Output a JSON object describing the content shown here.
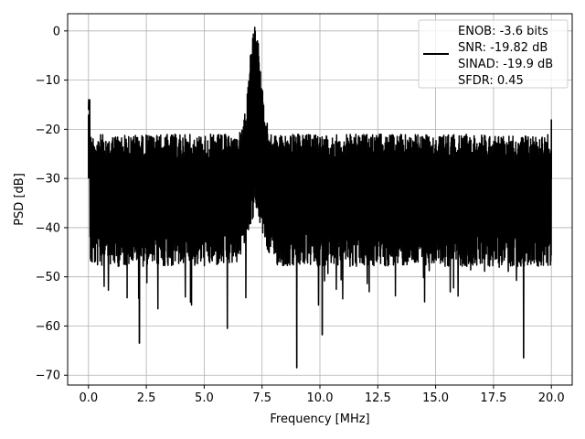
{
  "chart_data": {
    "type": "line",
    "xlabel": "Frequency [MHz]",
    "ylabel": "PSD [dB]",
    "xlim": [
      -0.9,
      20.9
    ],
    "ylim": [
      -72,
      3.5
    ],
    "xticks": [
      0.0,
      2.5,
      5.0,
      7.5,
      10.0,
      12.5,
      15.0,
      17.5,
      20.0
    ],
    "xtick_labels": [
      "0.0",
      "2.5",
      "5.0",
      "7.5",
      "10.0",
      "12.5",
      "15.0",
      "17.5",
      "20.0"
    ],
    "yticks": [
      0,
      -10,
      -20,
      -30,
      -40,
      -50,
      -60,
      -70
    ],
    "ytick_labels": [
      "0",
      "−10",
      "−20",
      "−30",
      "−40",
      "−50",
      "−60",
      "−70"
    ],
    "grid": true,
    "legend_position": "top-right",
    "legend": [
      "ENOB: -3.6 bits",
      "SNR: -19.82 dB",
      "SINAD: -19.9 dB",
      "SFDR: 0.45"
    ],
    "line_color": "#000000",
    "series": [
      {
        "x": [
          0.0,
          0.05,
          2.2,
          3.0,
          6.0,
          6.6,
          7.0,
          7.1,
          7.2,
          7.3,
          7.5,
          8.0,
          9.0,
          10.1,
          13.0,
          17.0,
          18.8,
          20.0
        ],
        "y": [
          -17,
          -14,
          -63.5,
          -56.5,
          -60.5,
          -23,
          -5,
          -1.5,
          0,
          -2,
          -12,
          -24,
          -68.5,
          -61.8,
          -26,
          -22,
          -66.5,
          -18
        ]
      }
    ]
  }
}
